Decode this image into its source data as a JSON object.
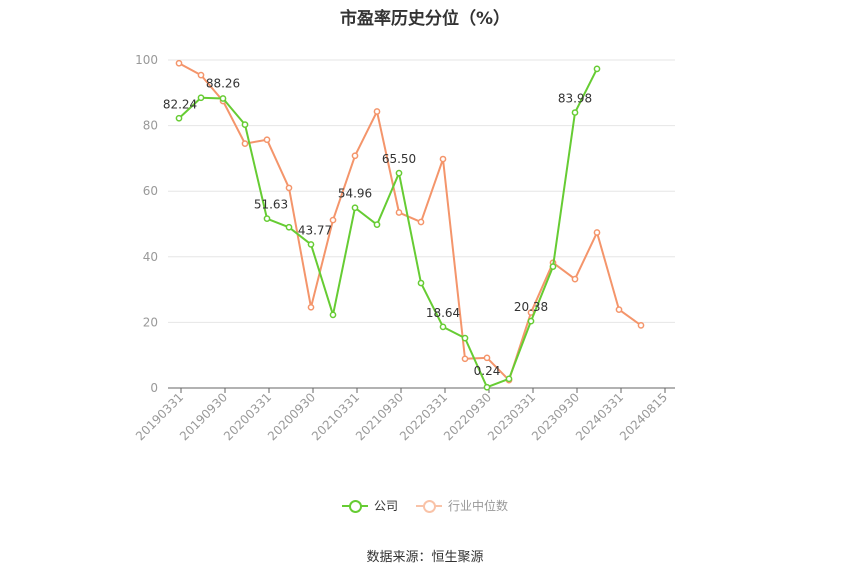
{
  "title": "市盈率历史分位（%）",
  "source": "数据来源：恒生聚源",
  "colors": {
    "company": "#66cc33",
    "industry": "#f4956b",
    "axis": "#666666",
    "grid": "#e6e6e6",
    "label": "#333333",
    "tick": "#999999"
  },
  "chart_data": {
    "type": "line",
    "ylim": [
      0,
      100
    ],
    "yticks": [
      0,
      20,
      40,
      60,
      80,
      100
    ],
    "xtick_labels": [
      "20190331",
      "20190930",
      "20200331",
      "20200930",
      "20210331",
      "20210930",
      "20220331",
      "20220930",
      "20230331",
      "20230930",
      "20240331",
      "20240815"
    ],
    "grid": true,
    "legend_position": "bottom",
    "series": [
      {
        "name": "公司",
        "values": [
          82.24,
          88.5,
          88.26,
          80.3,
          51.63,
          49.0,
          43.77,
          22.3,
          54.96,
          49.8,
          65.5,
          32.0,
          18.64,
          15.2,
          0.24,
          2.8,
          20.38,
          37.0,
          83.98,
          97.3,
          null,
          null
        ],
        "labels": [
          "82.24",
          "",
          "88.26",
          "",
          "51.63",
          "",
          "43.77",
          "",
          "54.96",
          "",
          "65.50",
          "",
          "18.64",
          "",
          "0.24",
          "",
          "20.38",
          "",
          "83.98",
          "",
          "",
          ""
        ]
      },
      {
        "name": "行业中位数",
        "values": [
          99.0,
          95.4,
          87.5,
          74.5,
          75.7,
          61.0,
          24.6,
          51.2,
          70.8,
          84.3,
          53.5,
          50.6,
          69.8,
          8.9,
          9.2,
          2.4,
          23.0,
          38.2,
          33.2,
          47.4,
          23.9,
          19.1
        ],
        "labels": []
      }
    ]
  }
}
